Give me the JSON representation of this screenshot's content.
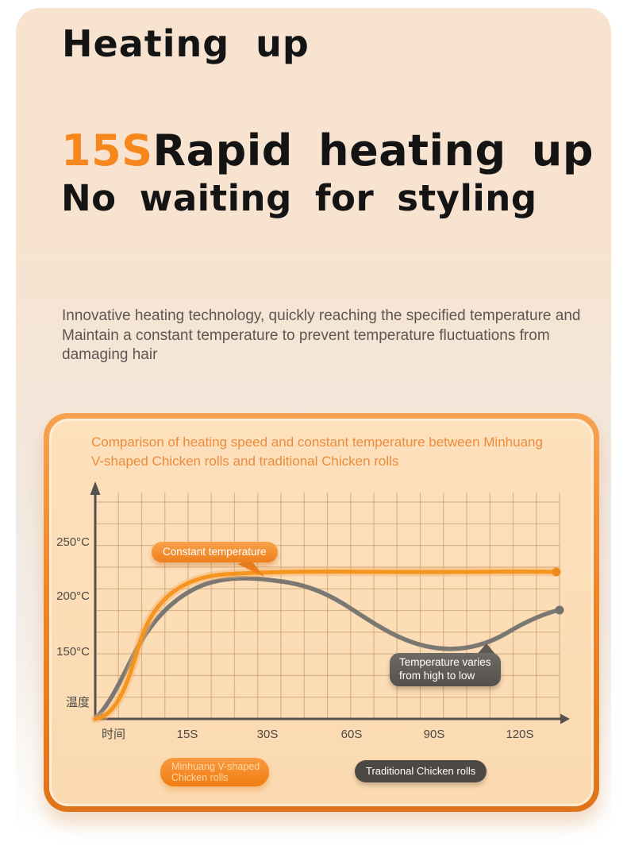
{
  "header": {
    "title": "Heating up",
    "highlight_text": "15S",
    "headline": "Rapid heating up",
    "subheadline": "No waiting for styling",
    "description_lines": [
      "Innovative heating technology, quickly reaching the specified temperature and",
      "Maintain a constant temperature to prevent temperature fluctuations from",
      "damaging hair"
    ]
  },
  "colors": {
    "accent_orange": "#f6871c",
    "card_border_orange": "#ef8626",
    "card_background": "#fbdab1",
    "page_background_top": "#f7e3d0",
    "line_orange": "#f5941f",
    "line_gray": "#7b7873",
    "headline_black": "#141414"
  },
  "chart_card": {
    "title_lines": [
      "Comparison of heating speed and constant temperature between Minhuang",
      "V-shaped Chicken rolls and traditional Chicken rolls"
    ],
    "annotations": {
      "constant_temperature": "Constant temperature",
      "varies_line1": "Temperature varies",
      "varies_line2": "from high to low"
    },
    "legend": {
      "minhuang_line1": "Minhuang V-shaped",
      "minhuang_line2": "Chicken rolls",
      "traditional": "Traditional Chicken rolls"
    }
  },
  "chart_data": {
    "type": "line",
    "title": "Comparison of heating speed and constant temperature between Minhuang V-shaped Chicken rolls and traditional Chicken rolls",
    "xlabel": "时间",
    "ylabel": "温度",
    "x_tick_labels": [
      "时间",
      "15S",
      "30S",
      "60S",
      "90S",
      "120S"
    ],
    "y_tick_labels": [
      "250°C",
      "200°C",
      "150°C",
      "温度"
    ],
    "x_unit": "seconds",
    "y_unit": "°C",
    "ylim_shown": [
      150,
      250
    ],
    "grid": true,
    "legend_position": "bottom",
    "annotations": [
      "Constant temperature",
      "Temperature varies from high to low"
    ],
    "series": [
      {
        "name": "Minhuang V-shaped Chicken rolls",
        "color": "#f5941f",
        "x_seconds": [
          0,
          5,
          10,
          15,
          30,
          60,
          90,
          120,
          132
        ],
        "y_celsius_est": [
          25,
          70,
          130,
          207,
          220,
          219,
          219,
          220,
          221
        ]
      },
      {
        "name": "Traditional Chicken rolls",
        "color": "#7b7873",
        "x_seconds": [
          0,
          5,
          10,
          15,
          30,
          60,
          90,
          120,
          132
        ],
        "y_celsius_est": [
          25,
          90,
          135,
          188,
          213,
          186,
          155,
          175,
          187
        ]
      }
    ]
  }
}
